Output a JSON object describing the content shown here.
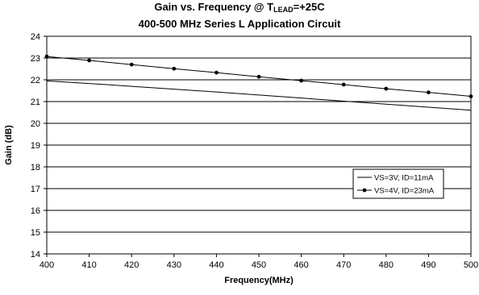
{
  "chart_data": {
    "type": "line",
    "title": {
      "prefix": "Gain vs. Frequency @ T",
      "subscript": "LEAD",
      "suffix": "=+25C"
    },
    "subtitle": "400-500 MHz Series L Application Circuit",
    "xlabel": "Frequency(MHz)",
    "ylabel": "Gain (dB)",
    "xlim": [
      400,
      500
    ],
    "ylim": [
      14,
      24
    ],
    "xticks": [
      400,
      410,
      420,
      430,
      440,
      450,
      460,
      470,
      480,
      490,
      500
    ],
    "yticks": [
      14,
      15,
      16,
      17,
      18,
      19,
      20,
      21,
      22,
      23,
      24
    ],
    "grid": {
      "horizontal": true,
      "vertical": false
    },
    "legend_position": "right-middle",
    "series": [
      {
        "name": "VS=3V, ID=11mA",
        "color": "#000000",
        "markers": false,
        "x": [
          400,
          410,
          420,
          430,
          440,
          450,
          460,
          470,
          480,
          490,
          500
        ],
        "y": [
          21.95,
          21.83,
          21.7,
          21.57,
          21.44,
          21.3,
          21.16,
          21.02,
          20.88,
          20.74,
          20.6
        ]
      },
      {
        "name": "VS=4V, ID=23mA",
        "color": "#000000",
        "markers": true,
        "x": [
          400,
          410,
          420,
          430,
          440,
          450,
          460,
          470,
          480,
          490,
          500
        ],
        "y": [
          23.07,
          22.89,
          22.7,
          22.51,
          22.33,
          22.14,
          21.96,
          21.78,
          21.59,
          21.42,
          21.24
        ]
      }
    ]
  }
}
